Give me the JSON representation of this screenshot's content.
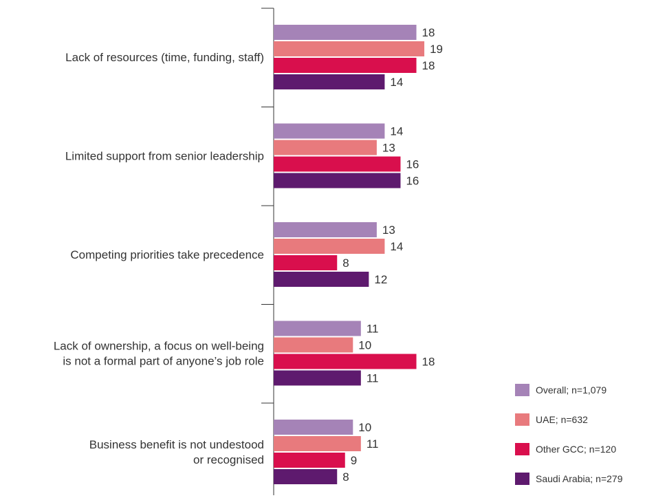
{
  "chart_data": {
    "type": "bar",
    "orientation": "horizontal",
    "categories": [
      [
        "Lack of resources (time, funding, staff)"
      ],
      [
        "Limited support from senior leadership"
      ],
      [
        "Competing priorities take precedence"
      ],
      [
        "Lack of ownership, a focus on well-being",
        "is not a formal part of anyone’s job role"
      ],
      [
        "Business benefit is not undestood",
        "or recognised"
      ]
    ],
    "series": [
      {
        "name": "Overall; n=1,079",
        "color": "#a583b7",
        "values": [
          18,
          14,
          13,
          11,
          10
        ]
      },
      {
        "name": "UAE; n=632",
        "color": "#e87a7d",
        "values": [
          19,
          13,
          14,
          10,
          11
        ]
      },
      {
        "name": "Other GCC; n=120",
        "color": "#d90f4d",
        "values": [
          18,
          16,
          8,
          18,
          9
        ]
      },
      {
        "name": "Saudi Arabia; n=279",
        "color": "#5e1a6e",
        "values": [
          14,
          16,
          12,
          11,
          8
        ]
      }
    ],
    "xlim": [
      0,
      20
    ],
    "grid": false,
    "legend_position": "bottom-right"
  }
}
